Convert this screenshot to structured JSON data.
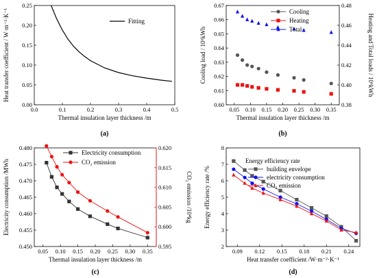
{
  "chart_data": [
    {
      "panel": "(a)",
      "type": "line",
      "xlabel": "Thermal insulation layer thickness /m",
      "ylabel": "Heat transfer coefficient / W·m⁻²·K⁻¹",
      "xlim": [
        0,
        0.5
      ],
      "ylim": [
        0,
        0.25
      ],
      "xticks": [
        "0.0",
        "0.1",
        "0.2",
        "0.3",
        "0.4",
        "0.5"
      ],
      "yticks": [
        "0.00",
        "0.05",
        "0.10",
        "0.15",
        "0.20",
        "0.25"
      ],
      "legend": "top-right",
      "series": [
        {
          "name": "Fitting",
          "color": "#000000",
          "x": [
            0.06,
            0.08,
            0.1,
            0.12,
            0.14,
            0.16,
            0.18,
            0.2,
            0.25,
            0.3,
            0.35,
            0.4,
            0.45,
            0.49
          ],
          "y": [
            0.25,
            0.216,
            0.188,
            0.165,
            0.147,
            0.133,
            0.121,
            0.111,
            0.093,
            0.081,
            0.073,
            0.067,
            0.062,
            0.059
          ]
        }
      ]
    },
    {
      "panel": "(b)",
      "type": "scatter",
      "xlabel": "Thermal insulation layer thickness /m",
      "ylabel_left": "Cooling load / 10⁶kWh",
      "ylabel_right": "Heating and Total loads / 10⁶kWh",
      "xlim": [
        0.025,
        0.375
      ],
      "ylim_left": [
        0.6,
        0.67
      ],
      "ylim_right": [
        0.38,
        0.48
      ],
      "xticks": [
        "0.05",
        "0.10",
        "0.15",
        "0.20",
        "0.25",
        "0.30",
        "0.35"
      ],
      "yticks_left": [
        "0.60",
        "0.61",
        "0.62",
        "0.63",
        "0.64",
        "0.65",
        "0.66",
        "0.67"
      ],
      "yticks_right": [
        "0.38",
        "0.40",
        "0.42",
        "0.44",
        "0.46",
        "0.48"
      ],
      "legend": "top-right",
      "series": [
        {
          "name": "Cooling",
          "axis": "left",
          "color": "#555555",
          "marker": "circle",
          "x": [
            0.06,
            0.075,
            0.09,
            0.105,
            0.125,
            0.15,
            0.185,
            0.235,
            0.265,
            0.35
          ],
          "y": [
            0.635,
            0.6315,
            0.628,
            0.627,
            0.6255,
            0.623,
            0.621,
            0.619,
            0.6175,
            0.615
          ]
        },
        {
          "name": "Heating",
          "axis": "right",
          "color": "#ee1111",
          "marker": "square",
          "x": [
            0.06,
            0.075,
            0.09,
            0.105,
            0.125,
            0.15,
            0.185,
            0.235,
            0.265,
            0.35
          ],
          "y": [
            0.4,
            0.4,
            0.399,
            0.398,
            0.397,
            0.396,
            0.395,
            0.394,
            0.393,
            0.391
          ]
        },
        {
          "name": "Total",
          "axis": "left",
          "color": "#1111ee",
          "marker": "triangle",
          "x": [
            0.06,
            0.075,
            0.09,
            0.105,
            0.125,
            0.15,
            0.185,
            0.235,
            0.265,
            0.35
          ],
          "y": [
            0.6655,
            0.6625,
            0.66,
            0.659,
            0.6575,
            0.6565,
            0.6545,
            0.6535,
            0.6525,
            0.651
          ]
        }
      ]
    },
    {
      "panel": "(c)",
      "type": "line",
      "xlabel": "Thermal insulation layer thickness /m",
      "ylabel_left": "Electricity consumption /MWh",
      "ylabel_right": "CO₂ emission /10⁴kg",
      "xlim": [
        0.025,
        0.375
      ],
      "ylim_left": [
        0.45,
        0.48
      ],
      "ylim_right": [
        0.595,
        0.62
      ],
      "xticks": [
        "0.05",
        "0.10",
        "0.15",
        "0.20",
        "0.25",
        "0.30",
        "0.35"
      ],
      "yticks_left": [
        "0.450",
        "0.455",
        "0.460",
        "0.465",
        "0.470",
        "0.475",
        "0.480"
      ],
      "yticks_right": [
        "0.595",
        "0.600",
        "0.605",
        "0.610",
        "0.615",
        "0.620"
      ],
      "legend": "top-right",
      "series": [
        {
          "name": "Electricity consumption",
          "axis": "left",
          "color": "#333333",
          "marker": "square",
          "x": [
            0.06,
            0.075,
            0.09,
            0.105,
            0.125,
            0.15,
            0.185,
            0.235,
            0.265,
            0.35
          ],
          "y": [
            0.4755,
            0.4712,
            0.468,
            0.466,
            0.4637,
            0.4614,
            0.4592,
            0.4568,
            0.4555,
            0.4527
          ]
        },
        {
          "name": "CO₂ emission",
          "axis": "right",
          "color": "#ee1111",
          "marker": "circle",
          "x": [
            0.06,
            0.075,
            0.09,
            0.105,
            0.125,
            0.15,
            0.185,
            0.235,
            0.265,
            0.35
          ],
          "y": [
            0.6205,
            0.6178,
            0.6152,
            0.6132,
            0.6112,
            0.6088,
            0.6066,
            0.604,
            0.6025,
            0.5985
          ]
        }
      ]
    },
    {
      "panel": "(d)",
      "type": "line",
      "xlabel": "Heat transfer coefficient /W·m⁻²·K⁻¹",
      "ylabel": "Energy efficiency rate /%",
      "legend_title": "Energy efficiency rate",
      "xlim": [
        0.075,
        0.255
      ],
      "ylim": [
        2,
        8
      ],
      "xticks": [
        "0.09",
        "0.12",
        "0.15",
        "0.18",
        "0.21",
        "0.24"
      ],
      "yticks": [
        "2",
        "3",
        "4",
        "5",
        "6",
        "7",
        "8"
      ],
      "legend": "top-right",
      "series": [
        {
          "name": "building envelope",
          "color": "#555555",
          "marker": "square",
          "x": [
            0.085,
            0.1,
            0.11,
            0.125,
            0.148,
            0.17,
            0.19,
            0.21,
            0.23,
            0.25
          ],
          "y": [
            7.2,
            6.65,
            6.3,
            5.95,
            5.4,
            4.85,
            4.35,
            3.85,
            3.2,
            2.35
          ]
        },
        {
          "name": "electricity consumption",
          "color": "#1111ee",
          "marker": "circle",
          "x": [
            0.085,
            0.1,
            0.11,
            0.125,
            0.148,
            0.17,
            0.19,
            0.21,
            0.23,
            0.25
          ],
          "y": [
            6.7,
            6.2,
            5.85,
            5.5,
            5.0,
            4.6,
            4.15,
            3.65,
            3.1,
            2.8
          ]
        },
        {
          "name": "CO₂ emission",
          "color": "#ee1111",
          "marker": "triangle",
          "x": [
            0.085,
            0.1,
            0.11,
            0.125,
            0.148,
            0.17,
            0.19,
            0.21,
            0.23,
            0.25
          ],
          "y": [
            6.35,
            5.85,
            5.55,
            5.25,
            4.85,
            4.45,
            4.0,
            3.55,
            3.0,
            2.85
          ]
        }
      ]
    }
  ]
}
